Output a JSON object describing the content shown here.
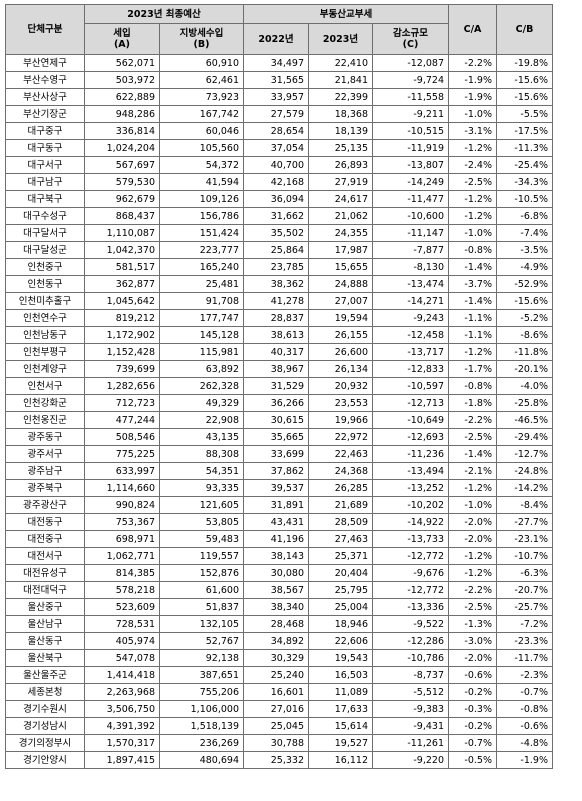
{
  "header": {
    "group_label": "단체구분",
    "budget_group": "2023년 최종예산",
    "revenue": "세입\n(A)",
    "local_tax": "지방세수입\n(B)",
    "tax_group": "부동산교부세",
    "y2022": "2022년",
    "y2023": "2023년",
    "decrease": "감소규모\n(C)",
    "c_a": "C/A",
    "c_b": "C/B"
  },
  "rows": [
    {
      "name": "부산연제구",
      "a": "562,071",
      "b": "60,910",
      "y22": "34,497",
      "y23": "22,410",
      "c": "-12,087",
      "ca": "-2.2%",
      "cb": "-19.8%"
    },
    {
      "name": "부산수영구",
      "a": "503,972",
      "b": "62,461",
      "y22": "31,565",
      "y23": "21,841",
      "c": "-9,724",
      "ca": "-1.9%",
      "cb": "-15.6%"
    },
    {
      "name": "부산사상구",
      "a": "622,889",
      "b": "73,923",
      "y22": "33,957",
      "y23": "22,399",
      "c": "-11,558",
      "ca": "-1.9%",
      "cb": "-15.6%"
    },
    {
      "name": "부산기장군",
      "a": "948,286",
      "b": "167,742",
      "y22": "27,579",
      "y23": "18,368",
      "c": "-9,211",
      "ca": "-1.0%",
      "cb": "-5.5%"
    },
    {
      "name": "대구중구",
      "a": "336,814",
      "b": "60,046",
      "y22": "28,654",
      "y23": "18,139",
      "c": "-10,515",
      "ca": "-3.1%",
      "cb": "-17.5%"
    },
    {
      "name": "대구동구",
      "a": "1,024,204",
      "b": "105,560",
      "y22": "37,054",
      "y23": "25,135",
      "c": "-11,919",
      "ca": "-1.2%",
      "cb": "-11.3%"
    },
    {
      "name": "대구서구",
      "a": "567,697",
      "b": "54,372",
      "y22": "40,700",
      "y23": "26,893",
      "c": "-13,807",
      "ca": "-2.4%",
      "cb": "-25.4%"
    },
    {
      "name": "대구남구",
      "a": "579,530",
      "b": "41,594",
      "y22": "42,168",
      "y23": "27,919",
      "c": "-14,249",
      "ca": "-2.5%",
      "cb": "-34.3%"
    },
    {
      "name": "대구북구",
      "a": "962,679",
      "b": "109,126",
      "y22": "36,094",
      "y23": "24,617",
      "c": "-11,477",
      "ca": "-1.2%",
      "cb": "-10.5%"
    },
    {
      "name": "대구수성구",
      "a": "868,437",
      "b": "156,786",
      "y22": "31,662",
      "y23": "21,062",
      "c": "-10,600",
      "ca": "-1.2%",
      "cb": "-6.8%"
    },
    {
      "name": "대구달서구",
      "a": "1,110,087",
      "b": "151,424",
      "y22": "35,502",
      "y23": "24,355",
      "c": "-11,147",
      "ca": "-1.0%",
      "cb": "-7.4%"
    },
    {
      "name": "대구달성군",
      "a": "1,042,370",
      "b": "223,777",
      "y22": "25,864",
      "y23": "17,987",
      "c": "-7,877",
      "ca": "-0.8%",
      "cb": "-3.5%"
    },
    {
      "name": "인천중구",
      "a": "581,517",
      "b": "165,240",
      "y22": "23,785",
      "y23": "15,655",
      "c": "-8,130",
      "ca": "-1.4%",
      "cb": "-4.9%"
    },
    {
      "name": "인천동구",
      "a": "362,877",
      "b": "25,481",
      "y22": "38,362",
      "y23": "24,888",
      "c": "-13,474",
      "ca": "-3.7%",
      "cb": "-52.9%"
    },
    {
      "name": "인천미추홀구",
      "a": "1,045,642",
      "b": "91,708",
      "y22": "41,278",
      "y23": "27,007",
      "c": "-14,271",
      "ca": "-1.4%",
      "cb": "-15.6%"
    },
    {
      "name": "인천연수구",
      "a": "819,212",
      "b": "177,747",
      "y22": "28,837",
      "y23": "19,594",
      "c": "-9,243",
      "ca": "-1.1%",
      "cb": "-5.2%"
    },
    {
      "name": "인천남동구",
      "a": "1,172,902",
      "b": "145,128",
      "y22": "38,613",
      "y23": "26,155",
      "c": "-12,458",
      "ca": "-1.1%",
      "cb": "-8.6%"
    },
    {
      "name": "인천부평구",
      "a": "1,152,428",
      "b": "115,981",
      "y22": "40,317",
      "y23": "26,600",
      "c": "-13,717",
      "ca": "-1.2%",
      "cb": "-11.8%"
    },
    {
      "name": "인천계양구",
      "a": "739,699",
      "b": "63,892",
      "y22": "38,967",
      "y23": "26,134",
      "c": "-12,833",
      "ca": "-1.7%",
      "cb": "-20.1%"
    },
    {
      "name": "인천서구",
      "a": "1,282,656",
      "b": "262,328",
      "y22": "31,529",
      "y23": "20,932",
      "c": "-10,597",
      "ca": "-0.8%",
      "cb": "-4.0%"
    },
    {
      "name": "인천강화군",
      "a": "712,723",
      "b": "49,329",
      "y22": "36,266",
      "y23": "23,553",
      "c": "-12,713",
      "ca": "-1.8%",
      "cb": "-25.8%"
    },
    {
      "name": "인천옹진군",
      "a": "477,244",
      "b": "22,908",
      "y22": "30,615",
      "y23": "19,966",
      "c": "-10,649",
      "ca": "-2.2%",
      "cb": "-46.5%"
    },
    {
      "name": "광주동구",
      "a": "508,546",
      "b": "43,135",
      "y22": "35,665",
      "y23": "22,972",
      "c": "-12,693",
      "ca": "-2.5%",
      "cb": "-29.4%"
    },
    {
      "name": "광주서구",
      "a": "775,225",
      "b": "88,308",
      "y22": "33,699",
      "y23": "22,463",
      "c": "-11,236",
      "ca": "-1.4%",
      "cb": "-12.7%"
    },
    {
      "name": "광주남구",
      "a": "633,997",
      "b": "54,351",
      "y22": "37,862",
      "y23": "24,368",
      "c": "-13,494",
      "ca": "-2.1%",
      "cb": "-24.8%"
    },
    {
      "name": "광주북구",
      "a": "1,114,660",
      "b": "93,335",
      "y22": "39,537",
      "y23": "26,285",
      "c": "-13,252",
      "ca": "-1.2%",
      "cb": "-14.2%"
    },
    {
      "name": "광주광산구",
      "a": "990,824",
      "b": "121,605",
      "y22": "31,891",
      "y23": "21,689",
      "c": "-10,202",
      "ca": "-1.0%",
      "cb": "-8.4%"
    },
    {
      "name": "대전동구",
      "a": "753,367",
      "b": "53,805",
      "y22": "43,431",
      "y23": "28,509",
      "c": "-14,922",
      "ca": "-2.0%",
      "cb": "-27.7%"
    },
    {
      "name": "대전중구",
      "a": "698,971",
      "b": "59,483",
      "y22": "41,196",
      "y23": "27,463",
      "c": "-13,733",
      "ca": "-2.0%",
      "cb": "-23.1%"
    },
    {
      "name": "대전서구",
      "a": "1,062,771",
      "b": "119,557",
      "y22": "38,143",
      "y23": "25,371",
      "c": "-12,772",
      "ca": "-1.2%",
      "cb": "-10.7%"
    },
    {
      "name": "대전유성구",
      "a": "814,385",
      "b": "152,876",
      "y22": "30,080",
      "y23": "20,404",
      "c": "-9,676",
      "ca": "-1.2%",
      "cb": "-6.3%"
    },
    {
      "name": "대전대덕구",
      "a": "578,218",
      "b": "61,600",
      "y22": "38,567",
      "y23": "25,795",
      "c": "-12,772",
      "ca": "-2.2%",
      "cb": "-20.7%"
    },
    {
      "name": "울산중구",
      "a": "523,609",
      "b": "51,837",
      "y22": "38,340",
      "y23": "25,004",
      "c": "-13,336",
      "ca": "-2.5%",
      "cb": "-25.7%"
    },
    {
      "name": "울산남구",
      "a": "728,531",
      "b": "132,105",
      "y22": "28,468",
      "y23": "18,946",
      "c": "-9,522",
      "ca": "-1.3%",
      "cb": "-7.2%"
    },
    {
      "name": "울산동구",
      "a": "405,974",
      "b": "52,767",
      "y22": "34,892",
      "y23": "22,606",
      "c": "-12,286",
      "ca": "-3.0%",
      "cb": "-23.3%"
    },
    {
      "name": "울산북구",
      "a": "547,078",
      "b": "92,138",
      "y22": "30,329",
      "y23": "19,543",
      "c": "-10,786",
      "ca": "-2.0%",
      "cb": "-11.7%"
    },
    {
      "name": "울산울주군",
      "a": "1,414,418",
      "b": "387,651",
      "y22": "25,240",
      "y23": "16,503",
      "c": "-8,737",
      "ca": "-0.6%",
      "cb": "-2.3%"
    },
    {
      "name": "세종본청",
      "a": "2,263,968",
      "b": "755,206",
      "y22": "16,601",
      "y23": "11,089",
      "c": "-5,512",
      "ca": "-0.2%",
      "cb": "-0.7%"
    },
    {
      "name": "경기수원시",
      "a": "3,506,750",
      "b": "1,106,000",
      "y22": "27,016",
      "y23": "17,633",
      "c": "-9,383",
      "ca": "-0.3%",
      "cb": "-0.8%"
    },
    {
      "name": "경기성남시",
      "a": "4,391,392",
      "b": "1,518,139",
      "y22": "25,045",
      "y23": "15,614",
      "c": "-9,431",
      "ca": "-0.2%",
      "cb": "-0.6%"
    },
    {
      "name": "경기의정부시",
      "a": "1,570,317",
      "b": "236,269",
      "y22": "30,788",
      "y23": "19,527",
      "c": "-11,261",
      "ca": "-0.7%",
      "cb": "-4.8%"
    },
    {
      "name": "경기안양시",
      "a": "1,897,415",
      "b": "480,694",
      "y22": "25,332",
      "y23": "16,112",
      "c": "-9,220",
      "ca": "-0.5%",
      "cb": "-1.9%"
    }
  ]
}
